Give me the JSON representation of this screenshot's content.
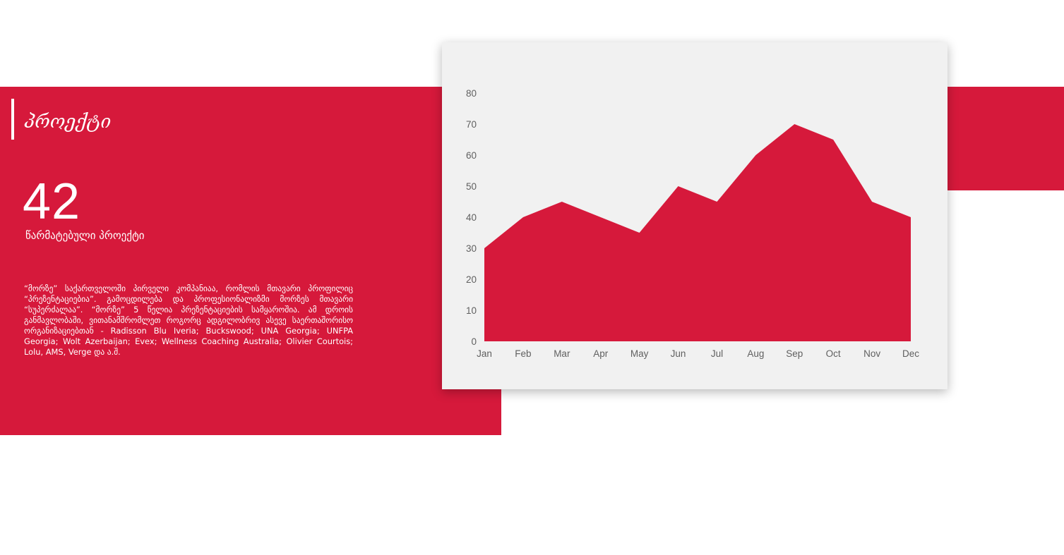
{
  "section": {
    "title": "პროექტი"
  },
  "stat": {
    "value": "42",
    "caption": "წარმატებული პროექტი"
  },
  "description": "“მორზე” საქართველოში პირველი კომპანიაა, რომლის მთავარი პროფილიც “პრეზენტაციებია”. გამოცდილება და პროფესიონალიზმი მორზეს მთავარი “სუპერძალაა”. “მორზე” 5 წელია პრეზენტაციების სამყაროშია. ამ დროის განმავლობაში, ვითანამშრომლეთ როგორც ადგილობრივ ასევე საერთაშორისო ორგანიზაციებთან - Radisson Blu Iveria; Buckswood; UNA Georgia; UNFPA Georgia; Wolt Azerbaijan; Evex; Wellness Coaching Australia; Olivier Courtois; Lolu, AMS, Verge და ა.შ.",
  "colors": {
    "accent": "#d6193b",
    "card_background": "#f1f1f1",
    "tick_text": "#606060"
  },
  "chart_data": {
    "type": "area",
    "categories": [
      "Jan",
      "Feb",
      "Mar",
      "Apr",
      "May",
      "Jun",
      "Jul",
      "Aug",
      "Sep",
      "Oct",
      "Nov",
      "Dec"
    ],
    "values": [
      30,
      40,
      45,
      40,
      35,
      50,
      45,
      60,
      70,
      65,
      45,
      40
    ],
    "yticks": [
      0,
      10,
      20,
      30,
      40,
      50,
      60,
      70,
      80
    ],
    "ylim": [
      0,
      80
    ],
    "title": "",
    "xlabel": "",
    "ylabel": "",
    "grid": false,
    "legend": false,
    "color": "#d6193b"
  }
}
